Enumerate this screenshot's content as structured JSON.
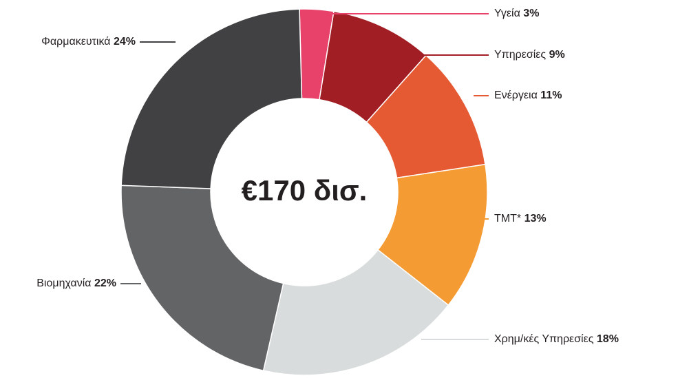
{
  "chart_data": {
    "type": "donut",
    "center_label": "€170 δισ.",
    "categories": [
      "Υγεία",
      "Υπηρεσίες",
      "Ενέργεια",
      "TMT*",
      "Χρημ/κές Υπηρεσίες",
      "Βιομηχανία",
      "Φαρμακευτικά"
    ],
    "values": [
      3,
      9,
      11,
      13,
      18,
      22,
      24
    ],
    "value_labels": [
      "3%",
      "9%",
      "11%",
      "13%",
      "18%",
      "22%",
      "24%"
    ],
    "colors": [
      "#e8416a",
      "#a11f24",
      "#e55a33",
      "#f59b33",
      "#d9dcdc",
      "#636466",
      "#414143"
    ]
  }
}
